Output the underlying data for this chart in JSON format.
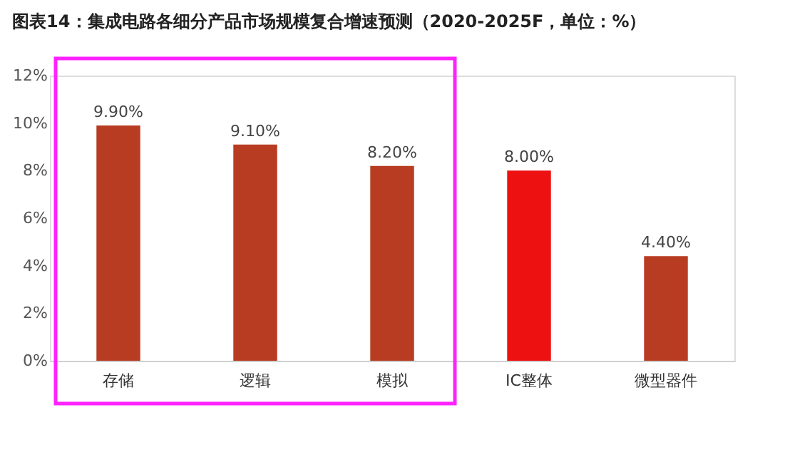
{
  "chart_data": {
    "type": "bar",
    "title": "图表14：集成电路各细分产品市场规模复合增速预测（2020-2025F，单位：%）",
    "categories": [
      "存储",
      "逻辑",
      "模拟",
      "IC整体",
      "微型器件"
    ],
    "values": [
      9.9,
      9.1,
      8.2,
      8.0,
      4.4
    ],
    "colors": [
      "#b83c22",
      "#b83c22",
      "#b83c22",
      "#ee1111",
      "#b83c22"
    ],
    "value_labels": [
      "9.90%",
      "9.10%",
      "8.20%",
      "8.00%",
      "4.40%"
    ],
    "ylim": [
      0,
      12
    ],
    "yticks": [
      {
        "value": 0,
        "label": "0%"
      },
      {
        "value": 2,
        "label": "2%"
      },
      {
        "value": 4,
        "label": "4%"
      },
      {
        "value": 6,
        "label": "6%"
      },
      {
        "value": 8,
        "label": "8%"
      },
      {
        "value": 10,
        "label": "10%"
      },
      {
        "value": 12,
        "label": "12%"
      }
    ],
    "grid": false
  }
}
